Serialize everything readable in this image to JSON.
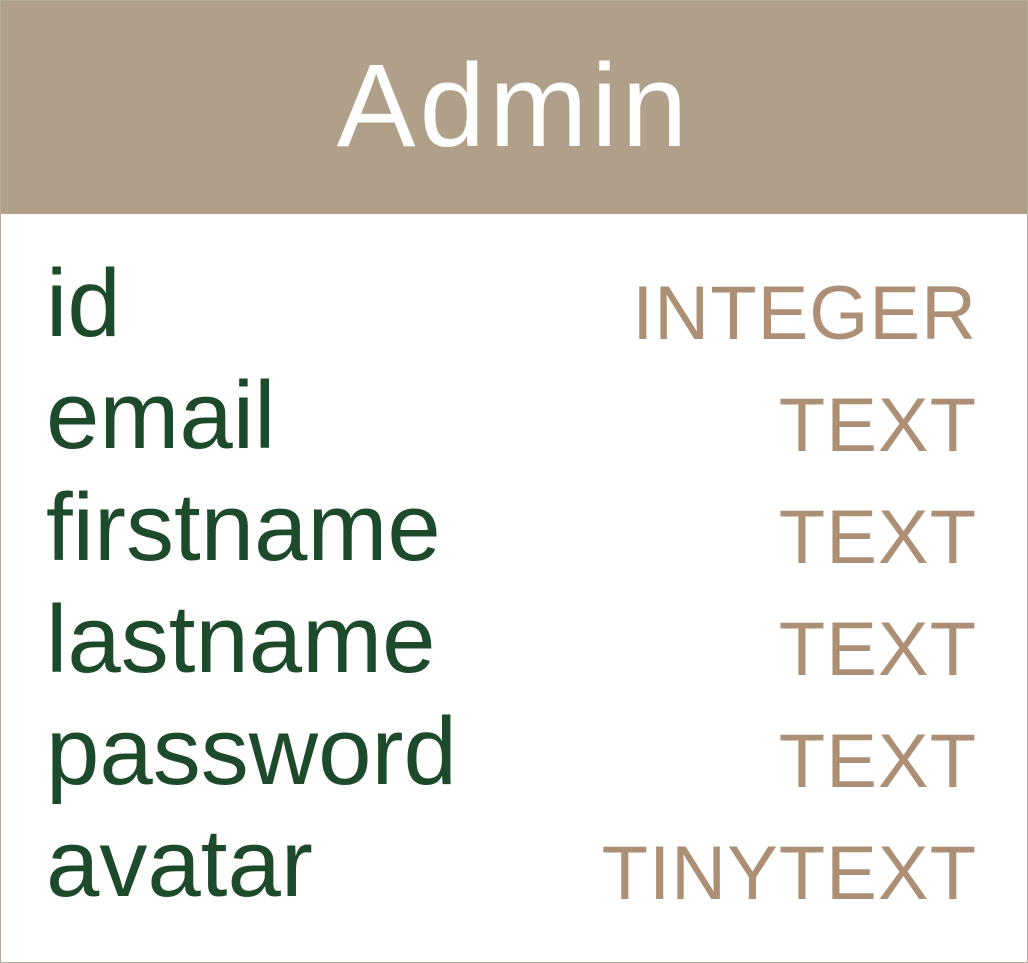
{
  "entity": {
    "title": "Admin",
    "header_color": "#b0a08a",
    "name_color": "#1c4a2a",
    "type_color": "#ac8f74",
    "fields": [
      {
        "name": "id",
        "type": "INTEGER"
      },
      {
        "name": "email",
        "type": "TEXT"
      },
      {
        "name": "firstname",
        "type": "TEXT"
      },
      {
        "name": "lastname",
        "type": "TEXT"
      },
      {
        "name": "password",
        "type": "TEXT"
      },
      {
        "name": "avatar",
        "type": "TINYTEXT"
      }
    ]
  }
}
